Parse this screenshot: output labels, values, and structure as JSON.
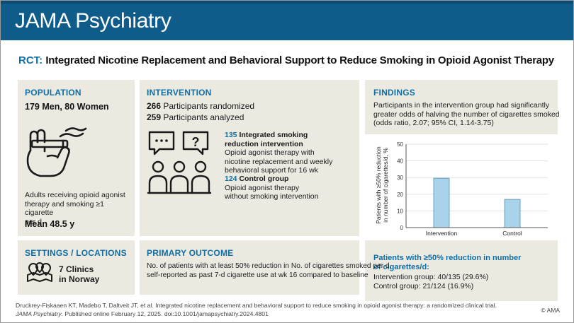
{
  "header": {
    "journal": "JAMA Psychiatry"
  },
  "title": {
    "prefix": "RCT:",
    "text": "Integrated Nicotine Replacement and Behavioral Support to Reduce Smoking in Opioid Agonist Therapy"
  },
  "population": {
    "heading": "POPULATION",
    "counts": "179 Men, 80 Women",
    "description": [
      "Adults receiving opioid agonist",
      "therapy and smoking ≥1 cigarette",
      "per d"
    ],
    "mean_age": "Mean 48.5 y",
    "icon": "hand-cigarette-icon"
  },
  "intervention": {
    "heading": "INTERVENTION",
    "randomized_n": "266",
    "randomized_label": "Participants randomized",
    "analyzed_n": "259",
    "analyzed_label": "Participants analyzed",
    "icon": "group-discussion-icon",
    "group1_n": "135",
    "group1_title_a": "Integrated smoking",
    "group1_title_b": "reduction intervention",
    "group1_desc": [
      "Opioid agonist therapy with",
      "nicotine replacement and weekly",
      "behavioral support for 16 wk"
    ],
    "group2_n": "124",
    "group2_title": "Control group",
    "group2_desc": [
      "Opioid agonist therapy",
      "without smoking intervention"
    ]
  },
  "findings": {
    "heading": "FINDINGS",
    "text": [
      "Participants in the intervention group had significantly",
      "greater odds of halving the number of cigarettes smoked",
      "(odds ratio, 2.07; 95% CI, 1.14-3.75)"
    ],
    "summary_title_a": "Patients with ≥50% reduction in number",
    "summary_title_b": "of cigarettes/d:",
    "summary_line1": "Intervention group: 40/135 (29.6%)",
    "summary_line2": "Control group: 21/124 (16.9%)"
  },
  "settings": {
    "heading": "SETTINGS / LOCATIONS",
    "line1": "7 Clinics",
    "line2": "in Norway",
    "icon": "map-pins-icon"
  },
  "primary_outcome": {
    "heading": "PRIMARY OUTCOME",
    "text": [
      "No. of patients with at least 50% reduction in No. of cigarettes smoked per d,",
      "self-reported as past 7-d cigarette use at wk 16 compared to baseline"
    ]
  },
  "citation": {
    "line1": "Druckrey-Fiskaaen KT, Madebo T, Daltveit JT, et al. Integrated nicotine replacement and behavioral support to reduce smoking in opioid agonist therapy: a randomized clinical trial.",
    "journal": "JAMA Psychiatry",
    "line2_rest": ". Published online February 12, 2025. doi:10.1001/jamapsychiatry.2024.4801",
    "copyright": "© AMA"
  },
  "chart_data": {
    "type": "bar",
    "categories": [
      "Intervention",
      "Control"
    ],
    "values": [
      29.6,
      16.9
    ],
    "ylabel_line1": "Patients with ≥50% reduction",
    "ylabel_line2": "in number of cigarettes/d, %",
    "ylim": [
      0,
      50
    ],
    "yticks": [
      0,
      10,
      20,
      30,
      40,
      50
    ],
    "grid": true,
    "bar_color": "#a9d3ea",
    "bar_edge": "#4f8fb5"
  },
  "colors": {
    "brand": "#0f5c8a",
    "accent": "#0f6fa6",
    "panel": "#ece9e1"
  }
}
